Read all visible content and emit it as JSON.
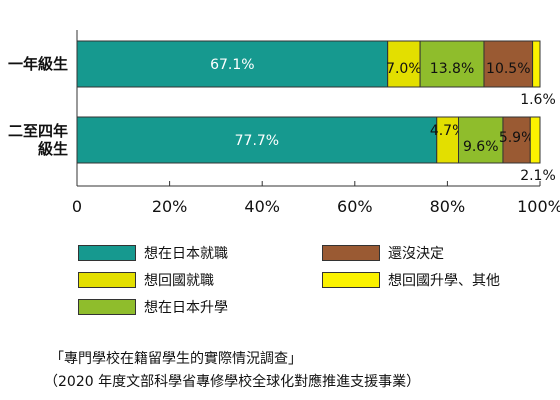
{
  "chart_data": {
    "type": "bar",
    "orientation": "horizontal",
    "stacked": true,
    "categories": [
      "一年級生",
      "二至四年\n級生"
    ],
    "series": [
      {
        "name": "想在日本就職",
        "color": "#16998f",
        "values": [
          67.1,
          77.7
        ],
        "labels": [
          "67.1%",
          "77.7%"
        ]
      },
      {
        "name": "想回國就職",
        "color": "#e3df00",
        "values": [
          7.0,
          4.7
        ],
        "labels": [
          "7.0%",
          "4.7%"
        ]
      },
      {
        "name": "想在日本升學",
        "color": "#8fbd2c",
        "values": [
          13.8,
          9.6
        ],
        "labels": [
          "13.8%",
          "9.6%"
        ]
      },
      {
        "name": "還沒決定",
        "color": "#9a5a33",
        "values": [
          10.5,
          5.9
        ],
        "labels": [
          "10.5%",
          "5.9%"
        ]
      },
      {
        "name": "想回國升學、其他",
        "color": "#fbf200",
        "values": [
          1.6,
          2.1
        ],
        "labels": [
          "1.6%",
          "2.1%"
        ]
      }
    ],
    "xlim": [
      0,
      100
    ],
    "xticks": [
      0,
      20,
      40,
      60,
      80,
      100
    ],
    "xtick_labels": [
      "0",
      "20%",
      "40%",
      "60%",
      "80%",
      "100%"
    ]
  },
  "legend_order": [
    0,
    3,
    1,
    4,
    2
  ],
  "caption": {
    "line1": "「專門學校在籍留學生的實際情況調查」",
    "line2": "（2020 年度文部科學省專修學校全球化對應推進支援事業）"
  }
}
